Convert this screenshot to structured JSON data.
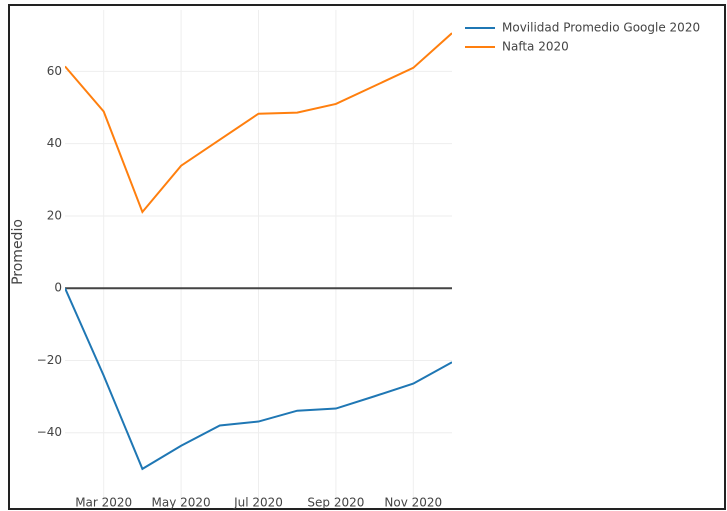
{
  "chart_data": {
    "type": "line",
    "y_label": "Promedio",
    "x": [
      "2020-02",
      "2020-03",
      "2020-04",
      "2020-05",
      "2020-06",
      "2020-07",
      "2020-08",
      "2020-09",
      "2020-10",
      "2020-11",
      "2020-12"
    ],
    "series": [
      {
        "name": "Movilidad Promedio Google 2020",
        "color": "#1f77b4",
        "values": [
          0,
          -24.2,
          -50,
          -43.6,
          -38,
          -36.9,
          -33.9,
          -33.3,
          -29.9,
          -26.4,
          -20.5
        ]
      },
      {
        "name": "Nafta 2020",
        "color": "#ff7f0e",
        "values": [
          61.4,
          48.9,
          21.1,
          33.9,
          41.1,
          48.3,
          48.6,
          51,
          56,
          61,
          70.6
        ]
      }
    ],
    "xlim": [
      "2020-02",
      "2020-12"
    ],
    "xticks": [
      {
        "value": "2020-03",
        "label": "Mar 2020"
      },
      {
        "value": "2020-05",
        "label": "May 2020"
      },
      {
        "value": "2020-07",
        "label": "Jul 2020"
      },
      {
        "value": "2020-09",
        "label": "Sep 2020"
      },
      {
        "value": "2020-11",
        "label": "Nov 2020"
      }
    ],
    "ylim": [
      -60,
      77
    ],
    "yticks": [
      {
        "value": -40,
        "label": "−40"
      },
      {
        "value": -20,
        "label": "−20"
      },
      0,
      20,
      40,
      60
    ],
    "grid": true,
    "legend": "right"
  }
}
